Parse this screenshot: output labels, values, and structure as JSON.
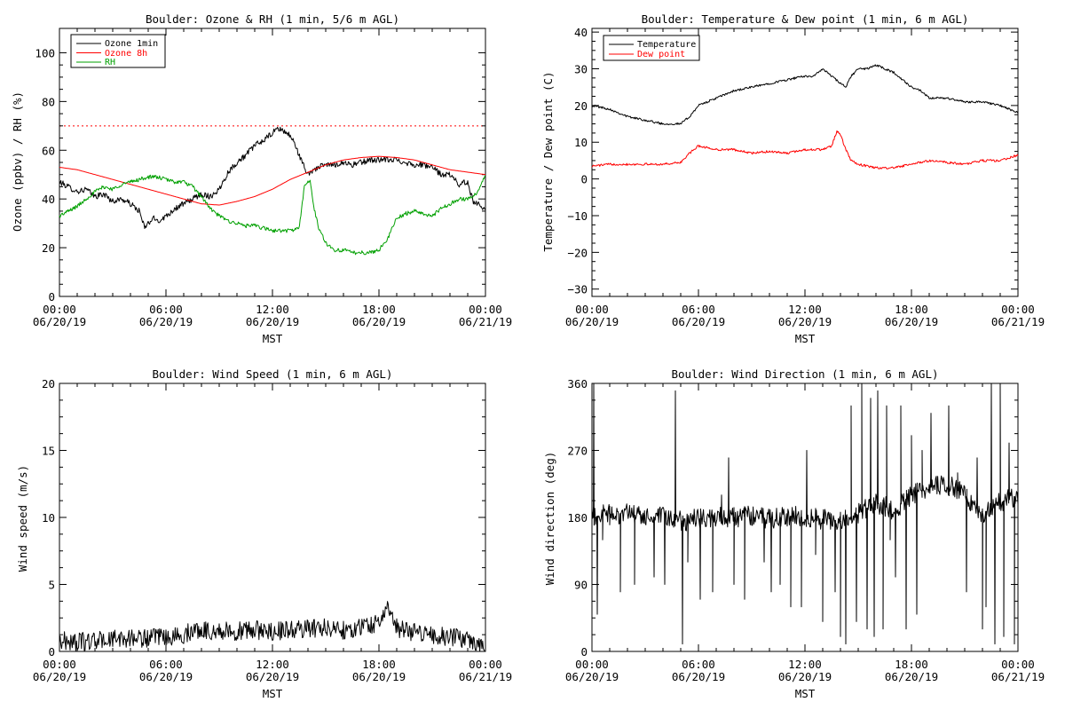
{
  "chart_data": [
    {
      "type": "line",
      "title": "Boulder: Ozone & RH (1 min, 5/6 m AGL)",
      "xlabel": "MST",
      "ylabel": "Ozone (ppbv) / RH (%)",
      "ylim": [
        0,
        110
      ],
      "yticks": [
        "0",
        "20",
        "40",
        "60",
        "80",
        "100"
      ],
      "xticks": [
        {
          "time": "00:00",
          "date": "06/20/19"
        },
        {
          "time": "06:00",
          "date": "06/20/19"
        },
        {
          "time": "12:00",
          "date": "06/20/19"
        },
        {
          "time": "18:00",
          "date": "06/20/19"
        },
        {
          "time": "00:00",
          "date": "06/21/19"
        }
      ],
      "grid": false,
      "legend_position": "top-left",
      "hline": {
        "y": 70,
        "style": "dotted",
        "color": "#ff0000"
      },
      "series": [
        {
          "name": "Ozone 1min",
          "color": "#000000",
          "noise": 1.2,
          "x": [
            0,
            0.5,
            1,
            1.5,
            2,
            2.5,
            3,
            3.5,
            4,
            4.5,
            4.8,
            5,
            5.3,
            5.6,
            6,
            6.5,
            7,
            7.5,
            8,
            8.5,
            9,
            9.5,
            10,
            10.5,
            11,
            11.5,
            12,
            12.3,
            12.6,
            13,
            13.3,
            13.6,
            14,
            14.3,
            14.6,
            15,
            15.5,
            16,
            16.5,
            17,
            17.5,
            18,
            18.5,
            19,
            19.5,
            20,
            20.5,
            21,
            21.5,
            22,
            22.5,
            23,
            23.3,
            23.6,
            24
          ],
          "y": [
            47,
            45,
            43,
            44,
            41,
            42,
            39,
            40,
            38,
            35,
            28,
            30,
            32,
            31,
            33,
            36,
            38,
            40,
            42,
            41,
            44,
            51,
            55,
            58,
            62,
            64,
            67,
            69,
            68,
            66,
            62,
            56,
            50,
            52,
            53,
            54,
            54,
            55,
            54,
            55,
            56,
            56,
            56,
            56,
            55,
            54,
            54,
            53,
            50,
            50,
            46,
            47,
            39,
            38,
            36
          ]
        },
        {
          "name": "Ozone 8h",
          "color": "#ff0000",
          "noise": 0,
          "x": [
            0,
            1,
            2,
            3,
            4,
            5,
            6,
            7,
            8,
            9,
            10,
            11,
            12,
            13,
            14,
            15,
            16,
            17,
            18,
            19,
            20,
            21,
            22,
            23,
            24
          ],
          "y": [
            53,
            52,
            50,
            48,
            46,
            44,
            42,
            40,
            38,
            37.5,
            39,
            41,
            44,
            48,
            51,
            54,
            56,
            57,
            57.5,
            57,
            56,
            54,
            52,
            51,
            50
          ]
        },
        {
          "name": "RH",
          "color": "#00a000",
          "noise": 0.8,
          "x": [
            0,
            0.5,
            1,
            1.5,
            2,
            2.5,
            3,
            3.5,
            4,
            4.5,
            5,
            5.5,
            6,
            6.5,
            7,
            7.5,
            8,
            8.5,
            9,
            9.5,
            10,
            10.5,
            11,
            11.5,
            12,
            12.5,
            13,
            13.5,
            13.8,
            14.1,
            14.3,
            14.6,
            15,
            15.5,
            16,
            16.5,
            17,
            17.5,
            18,
            18.5,
            19,
            19.5,
            20,
            20.5,
            21,
            21.5,
            22,
            22.5,
            23,
            23.5,
            24
          ],
          "y": [
            33,
            35,
            37,
            40,
            43,
            45,
            44,
            46,
            47,
            48,
            49,
            49,
            48,
            47,
            47,
            45,
            41,
            36,
            33,
            31,
            30,
            29,
            29,
            28,
            27,
            27,
            27,
            28,
            45,
            48,
            38,
            28,
            22,
            19,
            19,
            18,
            18,
            18,
            19,
            24,
            32,
            34,
            35,
            34,
            33,
            36,
            38,
            40,
            40,
            42,
            50
          ]
        }
      ]
    },
    {
      "type": "line",
      "title": "Boulder: Temperature & Dew point (1 min, 6 m AGL)",
      "xlabel": "MST",
      "ylabel": "Temperature / Dew point (C)",
      "ylim": [
        -32,
        41
      ],
      "yticks": [
        "−30",
        "−20",
        "−10",
        "0",
        "10",
        "20",
        "30",
        "40"
      ],
      "xticks": [
        {
          "time": "00:00",
          "date": "06/20/19"
        },
        {
          "time": "06:00",
          "date": "06/20/19"
        },
        {
          "time": "12:00",
          "date": "06/20/19"
        },
        {
          "time": "18:00",
          "date": "06/20/19"
        },
        {
          "time": "00:00",
          "date": "06/21/19"
        }
      ],
      "grid": false,
      "legend_position": "top-left",
      "series": [
        {
          "name": "Temperature",
          "color": "#000000",
          "noise": 0.3,
          "x": [
            0,
            1,
            2,
            3,
            4,
            4.5,
            5,
            5.5,
            6,
            6.5,
            7,
            8,
            9,
            10,
            11,
            12,
            12.5,
            13,
            13.5,
            14,
            14.3,
            14.6,
            15,
            15.5,
            16,
            16.5,
            17,
            17.5,
            18,
            18.5,
            19,
            20,
            21,
            22,
            23,
            24
          ],
          "y": [
            20,
            19,
            17,
            16,
            15,
            15,
            15,
            17,
            20,
            21,
            22,
            24,
            25,
            26,
            27,
            28,
            28,
            30,
            28,
            26,
            25,
            28,
            30,
            30,
            31,
            30,
            29,
            27,
            25,
            24,
            22,
            22,
            21,
            21,
            20,
            18
          ]
        },
        {
          "name": "Dew point",
          "color": "#ff0000",
          "noise": 0.3,
          "x": [
            0,
            1,
            2,
            3,
            4,
            5,
            5.5,
            6,
            7,
            8,
            9,
            10,
            11,
            12,
            13,
            13.5,
            13.8,
            14,
            14.3,
            14.6,
            15,
            16,
            17,
            18,
            19,
            20,
            21,
            22,
            23,
            24
          ],
          "y": [
            3.5,
            4,
            4,
            4,
            4,
            4.5,
            7,
            9,
            8,
            8,
            7,
            7.5,
            7,
            8,
            8,
            9,
            13,
            12,
            8,
            5,
            4,
            3,
            3,
            4,
            5,
            4.5,
            4,
            5,
            5,
            6.5
          ]
        }
      ]
    },
    {
      "type": "line",
      "title": "Boulder: Wind Speed (1 min, 6 m AGL)",
      "xlabel": "MST",
      "ylabel": "Wind speed (m/s)",
      "ylim": [
        0,
        20
      ],
      "yticks": [
        "0",
        "5",
        "10",
        "15",
        "20"
      ],
      "xticks": [
        {
          "time": "00:00",
          "date": "06/20/19"
        },
        {
          "time": "06:00",
          "date": "06/20/19"
        },
        {
          "time": "12:00",
          "date": "06/20/19"
        },
        {
          "time": "18:00",
          "date": "06/20/19"
        },
        {
          "time": "00:00",
          "date": "06/21/19"
        }
      ],
      "grid": false,
      "series": [
        {
          "name": "",
          "color": "#000000",
          "noise": 0.7,
          "floor": 0,
          "x": [
            0,
            1,
            2,
            3,
            4,
            5,
            6,
            7,
            7.5,
            8,
            9,
            10,
            11,
            12,
            13,
            14,
            15,
            16,
            17,
            18,
            18.5,
            19,
            19.5,
            20,
            21,
            22,
            23,
            23.5,
            24
          ],
          "y": [
            0.8,
            0.7,
            0.8,
            0.9,
            1.0,
            1.0,
            1.0,
            1.2,
            1.6,
            1.6,
            1.5,
            1.5,
            1.6,
            1.5,
            1.6,
            1.7,
            1.8,
            1.6,
            1.8,
            2.2,
            3.2,
            1.8,
            1.5,
            1.5,
            1.3,
            1.0,
            1.0,
            0.6,
            0.3
          ]
        }
      ]
    },
    {
      "type": "line",
      "title": "Boulder: Wind Direction (1 min, 6 m AGL)",
      "xlabel": "MST",
      "ylabel": "Wind direction (deg)",
      "ylim": [
        0,
        360
      ],
      "yticks": [
        "0",
        "90",
        "180",
        "270",
        "360"
      ],
      "xticks": [
        {
          "time": "00:00",
          "date": "06/20/19"
        },
        {
          "time": "06:00",
          "date": "06/20/19"
        },
        {
          "time": "12:00",
          "date": "06/20/19"
        },
        {
          "time": "18:00",
          "date": "06/20/19"
        },
        {
          "time": "00:00",
          "date": "06/21/19"
        }
      ],
      "grid": false,
      "series": [
        {
          "name": "",
          "color": "#000000",
          "noise": 14,
          "floor": 0,
          "ceil": 360,
          "x": [
            0,
            1,
            2,
            3,
            4,
            5,
            6,
            7,
            8,
            9,
            10,
            11,
            12,
            13,
            14,
            15,
            16,
            17,
            18,
            19,
            20,
            21,
            22,
            23,
            24
          ],
          "y": [
            180,
            185,
            185,
            180,
            180,
            175,
            178,
            180,
            180,
            182,
            178,
            182,
            180,
            178,
            175,
            185,
            200,
            190,
            210,
            220,
            225,
            210,
            185,
            200,
            210
          ],
          "spikes": [
            [
              0.1,
              360
            ],
            [
              0.3,
              50
            ],
            [
              0.6,
              150
            ],
            [
              1.0,
              170
            ],
            [
              1.6,
              80
            ],
            [
              2.4,
              90
            ],
            [
              3.5,
              100
            ],
            [
              4.1,
              90
            ],
            [
              4.7,
              350
            ],
            [
              5.1,
              10
            ],
            [
              5.4,
              120
            ],
            [
              6.1,
              70
            ],
            [
              6.8,
              80
            ],
            [
              7.3,
              210
            ],
            [
              7.7,
              260
            ],
            [
              8.0,
              90
            ],
            [
              8.6,
              70
            ],
            [
              9.7,
              120
            ],
            [
              10.1,
              80
            ],
            [
              10.6,
              90
            ],
            [
              11.2,
              60
            ],
            [
              11.8,
              60
            ],
            [
              12.1,
              270
            ],
            [
              12.6,
              130
            ],
            [
              13.0,
              40
            ],
            [
              13.7,
              80
            ],
            [
              14.0,
              20
            ],
            [
              14.3,
              10
            ],
            [
              14.6,
              330
            ],
            [
              14.9,
              40
            ],
            [
              15.2,
              360
            ],
            [
              15.5,
              30
            ],
            [
              15.7,
              340
            ],
            [
              15.9,
              20
            ],
            [
              16.1,
              350
            ],
            [
              16.4,
              30
            ],
            [
              16.6,
              330
            ],
            [
              16.8,
              150
            ],
            [
              17.1,
              100
            ],
            [
              17.4,
              330
            ],
            [
              17.7,
              30
            ],
            [
              18.0,
              290
            ],
            [
              18.3,
              50
            ],
            [
              18.6,
              270
            ],
            [
              19.1,
              320
            ],
            [
              20.1,
              330
            ],
            [
              20.6,
              240
            ],
            [
              21.1,
              80
            ],
            [
              21.7,
              260
            ],
            [
              22.0,
              30
            ],
            [
              22.2,
              60
            ],
            [
              22.5,
              360
            ],
            [
              22.7,
              10
            ],
            [
              23.0,
              360
            ],
            [
              23.2,
              20
            ],
            [
              23.5,
              280
            ],
            [
              23.8,
              10
            ]
          ]
        }
      ]
    }
  ]
}
